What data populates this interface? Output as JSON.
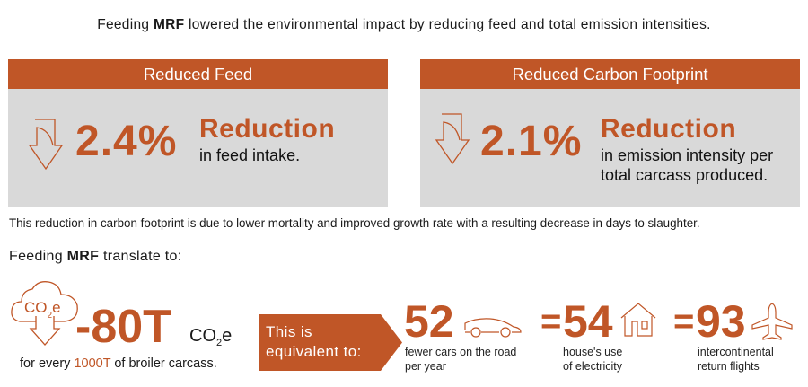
{
  "title": {
    "pre": "Feeding ",
    "bold": "MRF",
    "post": " lowered the environmental impact by reducing feed and total emission intensities."
  },
  "panels": [
    {
      "header": "Reduced Feed",
      "value": "2.4%",
      "label": "Reduction",
      "desc": [
        "in feed intake."
      ]
    },
    {
      "header": "Reduced Carbon Footprint",
      "value": "2.1%",
      "label": "Reduction",
      "desc": [
        "in emission intensity per",
        "total carcass produced."
      ]
    }
  ],
  "note": "This reduction in carbon footprint is due to lower mortality and improved growth rate with a resulting decrease in days to slaughter.",
  "translate": {
    "pre": "Feeding ",
    "bold": "MRF",
    "post": " translate to:"
  },
  "co2": {
    "cloud_text": "CO",
    "cloud_sub": "2",
    "cloud_e": "e",
    "value": "-80T",
    "unit": "CO",
    "unit_sub": "2",
    "unit_e": "e",
    "caption_pre": "for every ",
    "caption_highlight": "1000T",
    "caption_post": " of broiler carcass."
  },
  "equivalent": {
    "line1": "This is",
    "line2": "equivalent to:"
  },
  "items": [
    {
      "value": "52",
      "icon": "car-icon",
      "desc": [
        "fewer cars on the road",
        "per year"
      ]
    },
    {
      "value": "54",
      "icon": "house-icon",
      "desc": [
        "house's use",
        "of electricity"
      ]
    },
    {
      "value": "93",
      "icon": "airplane-icon",
      "desc": [
        "intercontinental",
        "return flights"
      ]
    }
  ],
  "equals": "=",
  "colors": {
    "accent": "#c05627",
    "panel": "#d9d9d9"
  }
}
